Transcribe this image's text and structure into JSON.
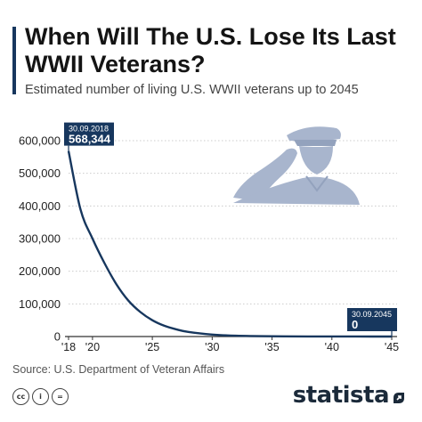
{
  "title": "When Will The U.S. Lose Its Last WWII Veterans?",
  "subtitle": "Estimated number of living U.S. WWII veterans up to 2045",
  "source": "Source: U.S. Department of Veteran Affairs",
  "brand": "statista",
  "license_icons": [
    "cc-icon",
    "info-icon",
    "equals-icon"
  ],
  "colors": {
    "line": "#17375e",
    "accent": "#17375e",
    "silhouette": "#a8b5cd",
    "grid": "#cccccc"
  },
  "chart_data": {
    "type": "line",
    "title": "",
    "xlabel": "",
    "ylabel": "",
    "x": [
      2018,
      2019,
      2020,
      2021,
      2022,
      2023,
      2024,
      2025,
      2026,
      2027,
      2028,
      2030,
      2032,
      2035,
      2038,
      2040,
      2042,
      2045
    ],
    "series": [
      {
        "values": [
          568344,
          389000,
          300000,
          225000,
          160000,
          110000,
          75000,
          50000,
          33000,
          22000,
          14000,
          6000,
          2500,
          800,
          250,
          120,
          40,
          0
        ]
      }
    ],
    "xlim": [
      2018,
      2045
    ],
    "ylim": [
      0,
      600000
    ],
    "yticks": [
      0,
      100000,
      200000,
      300000,
      400000,
      500000,
      600000
    ],
    "ytick_labels": [
      "0",
      "100,000",
      "200,000",
      "300,000",
      "400,000",
      "500,000",
      "600,000"
    ],
    "xticks": [
      2018,
      2020,
      2025,
      2030,
      2035,
      2040,
      2045
    ],
    "xtick_labels": [
      "'18",
      "'20",
      "'25",
      "'30",
      "'35",
      "'40",
      "'45"
    ],
    "grid": true,
    "annotations": [
      {
        "x": 2018,
        "y": 568344,
        "date": "30.09.2018",
        "value": "568,344"
      },
      {
        "x": 2045,
        "y": 0,
        "date": "30.09.2045",
        "value": "0"
      }
    ]
  }
}
